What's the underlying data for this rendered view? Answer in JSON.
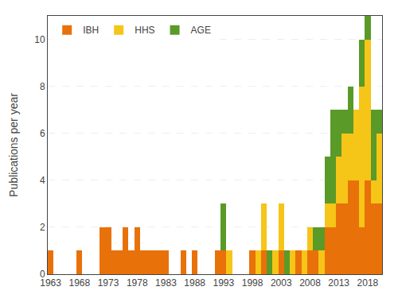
{
  "chart_data": {
    "type": "bar",
    "stacked": true,
    "x": [
      1963,
      1964,
      1965,
      1966,
      1967,
      1968,
      1969,
      1970,
      1971,
      1972,
      1973,
      1974,
      1975,
      1976,
      1977,
      1978,
      1979,
      1980,
      1981,
      1982,
      1983,
      1984,
      1985,
      1986,
      1987,
      1988,
      1989,
      1990,
      1991,
      1992,
      1993,
      1994,
      1995,
      1996,
      1997,
      1998,
      1999,
      2000,
      2001,
      2002,
      2003,
      2004,
      2005,
      2006,
      2007,
      2008,
      2009,
      2010,
      2011,
      2012,
      2013,
      2014,
      2015,
      2016,
      2017,
      2018,
      2019,
      2020
    ],
    "series": [
      {
        "name": "IBH",
        "color": "#E8710A",
        "values": [
          1,
          0,
          0,
          0,
          0,
          1,
          0,
          0,
          0,
          2,
          2,
          1,
          1,
          2,
          1,
          2,
          1,
          1,
          1,
          1,
          1,
          0,
          0,
          1,
          0,
          1,
          0,
          0,
          0,
          1,
          1,
          0,
          0,
          0,
          0,
          1,
          0,
          1,
          0,
          0,
          1,
          0,
          0,
          1,
          0,
          1,
          1,
          0,
          2,
          2,
          3,
          3,
          4,
          4,
          2,
          4,
          3,
          3
        ]
      },
      {
        "name": "HHS",
        "color": "#F5C518",
        "values": [
          0,
          0,
          0,
          0,
          0,
          0,
          0,
          0,
          0,
          0,
          0,
          0,
          0,
          0,
          0,
          0,
          0,
          0,
          0,
          0,
          0,
          0,
          0,
          0,
          0,
          0,
          0,
          0,
          0,
          0,
          0,
          1,
          0,
          0,
          0,
          0,
          1,
          2,
          0,
          1,
          2,
          0,
          1,
          0,
          1,
          1,
          0,
          1,
          1,
          1,
          2,
          3,
          2,
          3,
          6,
          6,
          1,
          3
        ]
      },
      {
        "name": "AGE",
        "color": "#5A9A28",
        "values": [
          0,
          0,
          0,
          0,
          0,
          0,
          0,
          0,
          0,
          0,
          0,
          0,
          0,
          0,
          0,
          0,
          0,
          0,
          0,
          0,
          0,
          0,
          0,
          0,
          0,
          0,
          0,
          0,
          0,
          0,
          2,
          0,
          0,
          0,
          0,
          0,
          0,
          0,
          1,
          0,
          0,
          1,
          0,
          0,
          0,
          0,
          1,
          1,
          2,
          4,
          2,
          1,
          2,
          0,
          2,
          1,
          3,
          1
        ]
      }
    ],
    "ylabel": "Publications per year",
    "xlim": [
      1962.5,
      2020.5
    ],
    "xticks": [
      1963,
      1968,
      1973,
      1978,
      1983,
      1988,
      1993,
      1998,
      2003,
      2008,
      2013,
      2018
    ],
    "ylim": [
      0,
      11
    ],
    "yticks": [
      0,
      2,
      4,
      6,
      8,
      10
    ],
    "grid": true,
    "legend": "upper left"
  }
}
